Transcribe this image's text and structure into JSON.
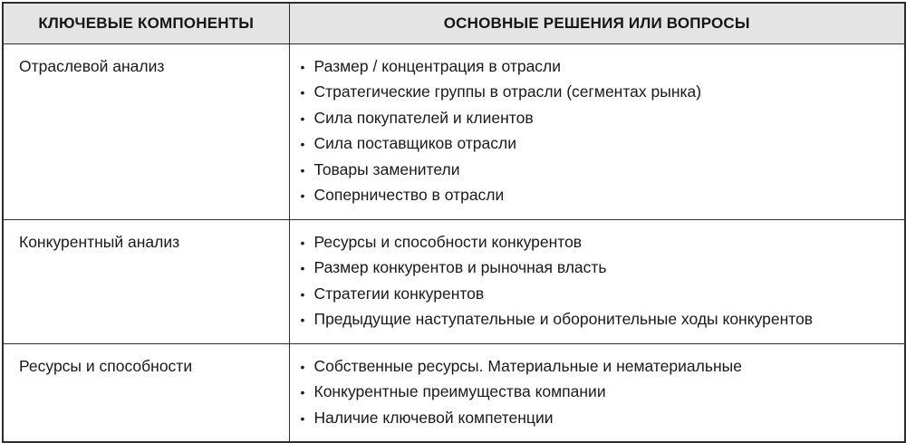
{
  "colors": {
    "header_bg": "#e4e4e4",
    "border": "#2d2d2d",
    "text": "#1a1a1a"
  },
  "table": {
    "columns": [
      {
        "label": "КЛЮЧЕВЫЕ КОМПОНЕНТЫ"
      },
      {
        "label": "ОСНОВНЫЕ РЕШЕНИЯ ИЛИ ВОПРОСЫ"
      }
    ],
    "rows": [
      {
        "component": "Отраслевой анализ",
        "items": [
          "Размер / концентрация в отрасли",
          "Стратегические группы в отрасли (сегментах рынка)",
          "Сила покупателей и клиентов",
          "Сила поставщиков отрасли",
          "Товары заменители",
          "Соперничество в отрасли"
        ]
      },
      {
        "component": "Конкурентный анализ",
        "items": [
          "Ресурсы и способности конкурентов",
          "Размер конкурентов и рыночная власть",
          "Стратегии конкурентов",
          "Предыдущие наступательные и оборонительные ходы конкурентов"
        ]
      },
      {
        "component": "Ресурсы и способности",
        "items": [
          "Собственные ресурсы. Материальные и нематериальные",
          "Конкурентные преимущества компании",
          "Наличие ключевой компетенции"
        ]
      }
    ]
  },
  "bullet_glyph": "•"
}
